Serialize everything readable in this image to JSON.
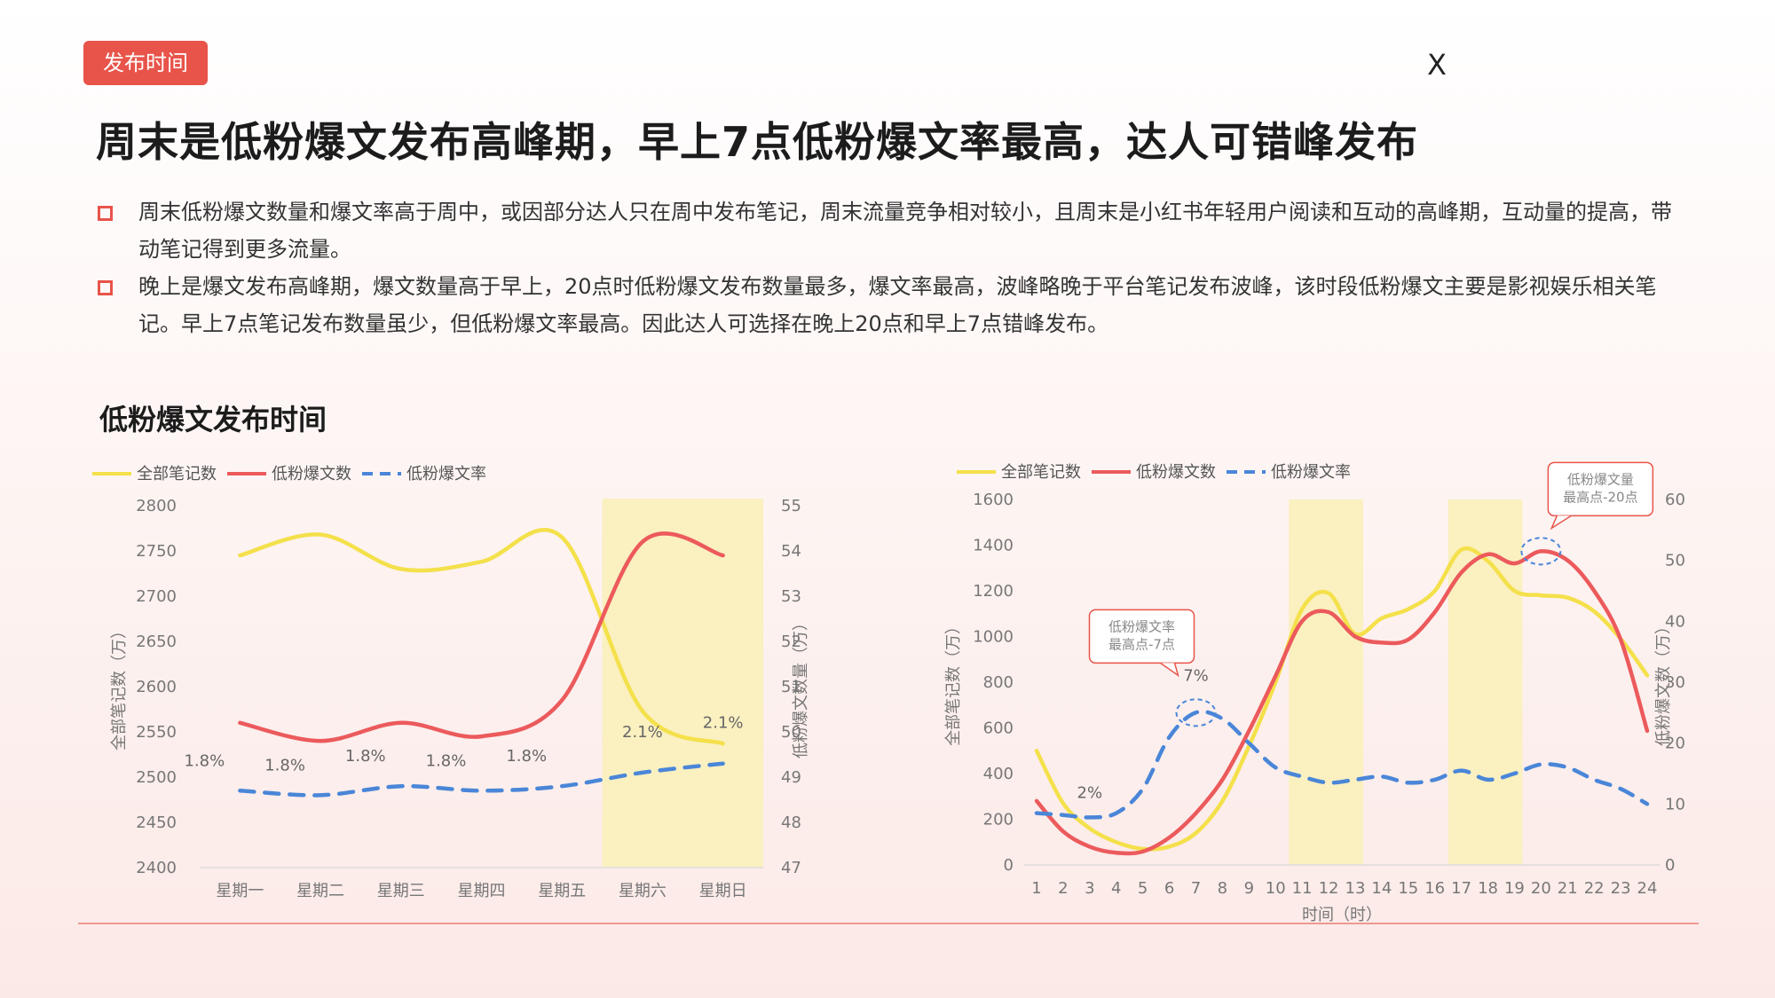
{
  "header": {
    "tag_label": "发布时间",
    "close_label": "X",
    "headline": "周末是低粉爆文发布高峰期，早上7点低粉爆文率最高，达人可错峰发布"
  },
  "bullets": [
    {
      "text": "周末低粉爆文数量和爆文率高于周中，或因部分达人只在周中发布笔记，周末流量竞争相对较小，且周末是小红书年轻用户阅读和互动的高峰期，互动量的提高，带动笔记得到更多流量。"
    },
    {
      "text": "晚上是爆文发布高峰期，爆文数量高于早上，20点时低粉爆文发布数量最多，爆文率最高，波峰略晚于平台笔记发布波峰，该时段低粉爆文主要是影视娱乐相关笔记。早上7点笔记发布数量虽少，但低粉爆文率最高。因此达人可选择在晚上20点和早上7点错峰发布。"
    }
  ],
  "section_title": "低粉爆文发布时间",
  "colors": {
    "all_notes": "#f4e04a",
    "low_fan_count": "#ec5a5c",
    "rate": "#4a86d8",
    "highlight": "#faf0c0",
    "accent": "#e8544a"
  },
  "chart_data": [
    {
      "type": "line",
      "categories": [
        "星期一",
        "星期二",
        "星期三",
        "星期四",
        "星期五",
        "星期六",
        "星期日"
      ],
      "legend": [
        "全部笔记数",
        "低粉爆文数",
        "低粉爆文率"
      ],
      "legend_position": "top-left",
      "highlight_categories": [
        "星期六",
        "星期日"
      ],
      "y_left": {
        "label": "全部笔记数（万）",
        "range": [
          2400,
          2800
        ],
        "ticks": [
          "2800",
          "2750",
          "2700",
          "2650",
          "2600",
          "2550",
          "2500",
          "2450",
          "2400"
        ]
      },
      "y_right": {
        "label": "低粉爆文数量（万）",
        "range": [
          47,
          55
        ],
        "ticks": [
          "55",
          "54",
          "53",
          "52",
          "51",
          "50",
          "49",
          "48",
          "47"
        ]
      },
      "series": [
        {
          "name": "全部笔记数",
          "axis": "left",
          "values": [
            2745,
            2768,
            2730,
            2738,
            2765,
            2573,
            2537
          ]
        },
        {
          "name": "低粉爆文数",
          "axis": "right",
          "values": [
            50.2,
            49.8,
            50.2,
            49.9,
            50.7,
            54.2,
            53.9
          ]
        },
        {
          "name": "低粉爆文率",
          "axis": "right",
          "values": [
            48.7,
            48.6,
            48.8,
            48.7,
            48.8,
            49.1,
            49.3
          ]
        }
      ],
      "data_labels": [
        "1.8%",
        "1.8%",
        "1.8%",
        "1.8%",
        "1.8%",
        "2.1%",
        "2.1%"
      ]
    },
    {
      "type": "line",
      "x": [
        "1",
        "2",
        "3",
        "4",
        "5",
        "6",
        "7",
        "8",
        "9",
        "10",
        "11",
        "12",
        "13",
        "14",
        "15",
        "16",
        "17",
        "18",
        "19",
        "20",
        "21",
        "22",
        "23",
        "24"
      ],
      "xlabel": "时间（时）",
      "legend": [
        "全部笔记数",
        "低粉爆文数",
        "低粉爆文率"
      ],
      "legend_position": "top-left",
      "highlight_ranges": [
        [
          "11",
          "13"
        ],
        [
          "17",
          "19"
        ]
      ],
      "y_left": {
        "label": "全部笔记数（万）",
        "range": [
          0,
          1600
        ],
        "ticks": [
          "1600",
          "1400",
          "1200",
          "1000",
          "800",
          "600",
          "400",
          "200",
          "0"
        ]
      },
      "y_right": {
        "label": "低粉爆文数（万）",
        "range": [
          0,
          60
        ],
        "ticks": [
          "60",
          "50",
          "40",
          "30",
          "20",
          "10",
          "0"
        ]
      },
      "series": [
        {
          "name": "全部笔记数",
          "axis": "left",
          "values": [
            500,
            270,
            160,
            100,
            70,
            80,
            140,
            280,
            520,
            800,
            1120,
            1190,
            1010,
            1080,
            1120,
            1200,
            1380,
            1330,
            1200,
            1180,
            1170,
            1110,
            990,
            830
          ]
        },
        {
          "name": "低粉爆文数",
          "axis": "right",
          "values": [
            10.5,
            5.5,
            3.0,
            2.0,
            2.2,
            4.5,
            8.5,
            14.0,
            22.0,
            31.0,
            40.0,
            41.5,
            37.5,
            36.5,
            37.0,
            41.5,
            48.0,
            51.0,
            49.5,
            51.5,
            50.0,
            45.0,
            37.0,
            22.0
          ]
        },
        {
          "name": "低粉爆文率",
          "axis": "right",
          "values": [
            8.5,
            8.2,
            7.8,
            8.5,
            12.5,
            21.0,
            25.0,
            24.0,
            20.0,
            16.0,
            14.5,
            13.5,
            14.0,
            14.5,
            13.5,
            14.0,
            15.5,
            14.0,
            15.0,
            16.5,
            16.0,
            14.0,
            12.5,
            10.0
          ]
        }
      ],
      "data_labels": [
        {
          "x": "3",
          "text": "2%"
        },
        {
          "x": "7",
          "text": "7%"
        }
      ],
      "callouts": [
        {
          "x": "7",
          "text_lines": [
            "低粉爆文率",
            "最高点-7点"
          ]
        },
        {
          "x": "20",
          "text_lines": [
            "低粉爆文量",
            "最高点-20点"
          ]
        }
      ]
    }
  ]
}
